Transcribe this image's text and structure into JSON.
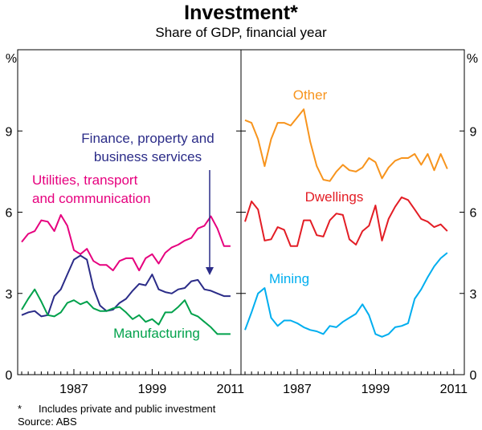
{
  "header": {
    "title": "Investment*",
    "subtitle": "Share of GDP, financial year"
  },
  "footnote": {
    "marker": "*",
    "text": "Includes private and public investment",
    "source": "Source: ABS"
  },
  "chart_data": {
    "type": "line",
    "unit_label": "%",
    "ylim": [
      0,
      12
    ],
    "yticks": [
      0,
      3,
      6,
      9
    ],
    "x_range": [
      1979,
      2012
    ],
    "xticks": [
      1987,
      1999,
      2011
    ],
    "panels": [
      {
        "id": "left",
        "series": [
          {
            "name": "Utilities, transport\nand communication",
            "label_lines": [
              "Utilities, transport",
              "and communication"
            ],
            "color": "#e6007e",
            "x": [
              1979,
              1980,
              1981,
              1982,
              1983,
              1984,
              1985,
              1986,
              1987,
              1988,
              1989,
              1990,
              1991,
              1992,
              1993,
              1994,
              1995,
              1996,
              1997,
              1998,
              1999,
              2000,
              2001,
              2002,
              2003,
              2004,
              2005,
              2006,
              2007,
              2008,
              2009,
              2010,
              2011
            ],
            "values": [
              4.9,
              5.2,
              5.3,
              5.7,
              5.65,
              5.3,
              5.9,
              5.5,
              4.6,
              4.45,
              4.65,
              4.2,
              4.05,
              4.05,
              3.85,
              4.2,
              4.3,
              4.3,
              3.85,
              4.3,
              4.45,
              4.1,
              4.5,
              4.7,
              4.8,
              4.95,
              5.05,
              5.4,
              5.5,
              5.85,
              5.4,
              4.75,
              4.75
            ]
          },
          {
            "name": "Finance, property and\nbusiness services",
            "label_lines": [
              "Finance, property and",
              "business services"
            ],
            "color": "#2b2c88",
            "x": [
              1979,
              1980,
              1981,
              1982,
              1983,
              1984,
              1985,
              1986,
              1987,
              1988,
              1989,
              1990,
              1991,
              1992,
              1993,
              1994,
              1995,
              1996,
              1997,
              1998,
              1999,
              2000,
              2001,
              2002,
              2003,
              2004,
              2005,
              2006,
              2007,
              2008,
              2009,
              2010,
              2011
            ],
            "values": [
              2.2,
              2.3,
              2.35,
              2.15,
              2.2,
              2.9,
              3.15,
              3.7,
              4.25,
              4.4,
              4.25,
              3.2,
              2.55,
              2.35,
              2.4,
              2.65,
              2.8,
              3.1,
              3.35,
              3.3,
              3.7,
              3.15,
              3.05,
              3.0,
              3.15,
              3.2,
              3.45,
              3.5,
              3.15,
              3.1,
              3.0,
              2.9,
              2.9
            ]
          },
          {
            "name": "Manufacturing",
            "label_lines": [
              "Manufacturing"
            ],
            "color": "#00a14b",
            "x": [
              1979,
              1980,
              1981,
              1982,
              1983,
              1984,
              1985,
              1986,
              1987,
              1988,
              1989,
              1990,
              1991,
              1992,
              1993,
              1994,
              1995,
              1996,
              1997,
              1998,
              1999,
              2000,
              2001,
              2002,
              2003,
              2004,
              2005,
              2006,
              2007,
              2008,
              2009,
              2010,
              2011
            ],
            "values": [
              2.4,
              2.8,
              3.15,
              2.7,
              2.2,
              2.15,
              2.3,
              2.65,
              2.75,
              2.6,
              2.7,
              2.45,
              2.35,
              2.35,
              2.45,
              2.5,
              2.3,
              2.05,
              2.2,
              1.95,
              2.05,
              1.85,
              2.3,
              2.3,
              2.5,
              2.75,
              2.25,
              2.15,
              1.95,
              1.75,
              1.5,
              1.5,
              1.5
            ]
          }
        ]
      },
      {
        "id": "right",
        "series": [
          {
            "name": "Other",
            "label_lines": [
              "Other"
            ],
            "color": "#f7941d",
            "x": [
              1979,
              1980,
              1981,
              1982,
              1983,
              1984,
              1985,
              1986,
              1987,
              1988,
              1989,
              1990,
              1991,
              1992,
              1993,
              1994,
              1995,
              1996,
              1997,
              1998,
              1999,
              2000,
              2001,
              2002,
              2003,
              2004,
              2005,
              2006,
              2007,
              2008,
              2009,
              2010
            ],
            "values": [
              9.4,
              9.3,
              8.7,
              7.7,
              8.7,
              9.3,
              9.3,
              9.2,
              9.5,
              9.8,
              8.6,
              7.7,
              7.2,
              7.15,
              7.5,
              7.75,
              7.55,
              7.5,
              7.65,
              8.0,
              7.85,
              7.25,
              7.65,
              7.9,
              8.0,
              8.0,
              8.15,
              7.75,
              8.15,
              7.55,
              8.15,
              7.6
            ]
          },
          {
            "name": "Dwellings",
            "label_lines": [
              "Dwellings"
            ],
            "color": "#e31d25",
            "x": [
              1979,
              1980,
              1981,
              1982,
              1983,
              1984,
              1985,
              1986,
              1987,
              1988,
              1989,
              1990,
              1991,
              1992,
              1993,
              1994,
              1995,
              1996,
              1997,
              1998,
              1999,
              2000,
              2001,
              2002,
              2003,
              2004,
              2005,
              2006,
              2007,
              2008,
              2009,
              2010
            ],
            "values": [
              5.65,
              6.4,
              6.1,
              4.95,
              5.0,
              5.45,
              5.35,
              4.75,
              4.75,
              5.7,
              5.7,
              5.15,
              5.1,
              5.7,
              5.95,
              5.9,
              5.0,
              4.8,
              5.3,
              5.5,
              6.25,
              4.95,
              5.75,
              6.2,
              6.55,
              6.45,
              6.1,
              5.75,
              5.65,
              5.45,
              5.55,
              5.3
            ]
          },
          {
            "name": "Mining",
            "label_lines": [
              "Mining"
            ],
            "color": "#00aeef",
            "x": [
              1979,
              1980,
              1981,
              1982,
              1983,
              1984,
              1985,
              1986,
              1987,
              1988,
              1989,
              1990,
              1991,
              1992,
              1993,
              1994,
              1995,
              1996,
              1997,
              1998,
              1999,
              2000,
              2001,
              2002,
              2003,
              2004,
              2005,
              2006,
              2007,
              2008,
              2009,
              2010
            ],
            "values": [
              1.65,
              2.3,
              3.0,
              3.2,
              2.1,
              1.8,
              2.0,
              2.0,
              1.9,
              1.75,
              1.65,
              1.6,
              1.5,
              1.8,
              1.75,
              1.95,
              2.1,
              2.25,
              2.6,
              2.2,
              1.5,
              1.4,
              1.5,
              1.75,
              1.8,
              1.9,
              2.8,
              3.15,
              3.6,
              4.0,
              4.3,
              4.5
            ]
          }
        ]
      }
    ]
  }
}
